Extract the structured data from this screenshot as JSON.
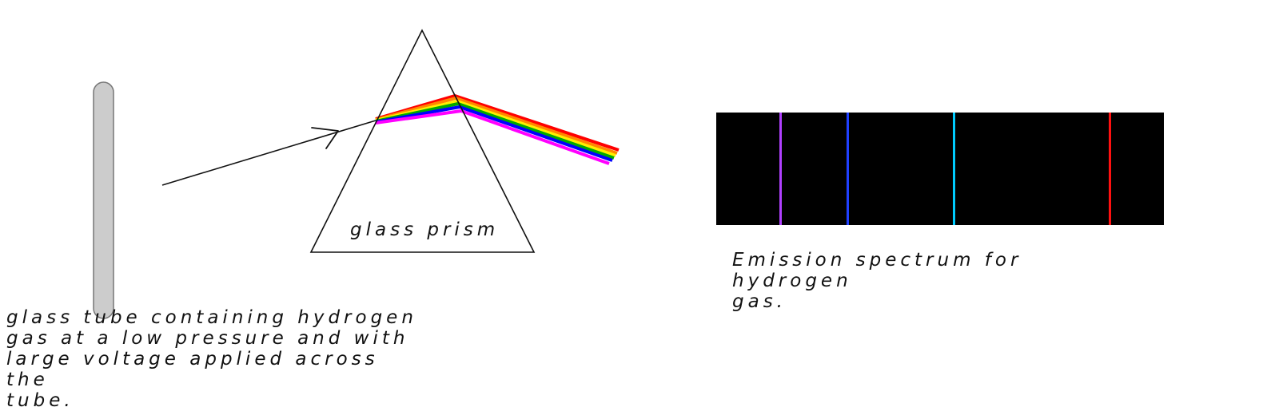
{
  "labels": {
    "tube_caption": "glass tube containing hydrogen\ngas at a low pressure and with\nlarge voltage applied across the\ntube.",
    "prism_label": "glass prism",
    "spectrum_caption": "Emission spectrum for hydrogen\ngas."
  },
  "colors": {
    "tube_fill": "#cccccc",
    "tube_stroke": "#777777",
    "line_stroke": "#111111",
    "spectrum_background": "#000000",
    "rainbow": [
      "#ff0000",
      "#ff8800",
      "#ffee00",
      "#00aa00",
      "#0000ff",
      "#ff00ff"
    ],
    "emission_lines": [
      "#b040ff",
      "#2040ff",
      "#00ccff",
      "#ff1010"
    ]
  }
}
